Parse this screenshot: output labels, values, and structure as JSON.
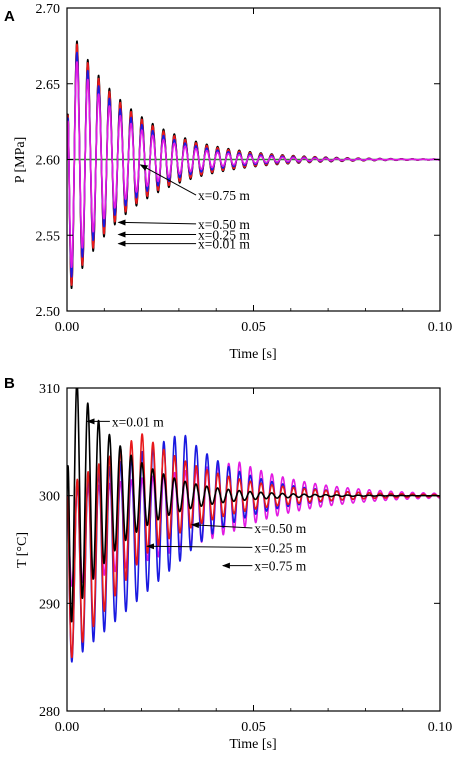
{
  "chart_data": [
    {
      "panel": "A",
      "type": "line",
      "xlabel": "Time [s]",
      "ylabel": "P [MPa]",
      "xlim": [
        0.0,
        0.1
      ],
      "ylim": [
        2.5,
        2.7
      ],
      "x_ticks": [
        "0.00",
        "0.05",
        "0.10"
      ],
      "x_tick_values": [
        0.0,
        0.05,
        0.1
      ],
      "y_ticks": [
        "2.50",
        "2.55",
        "2.60",
        "2.65",
        "2.70"
      ],
      "y_tick_values": [
        2.5,
        2.55,
        2.6,
        2.65,
        2.7
      ],
      "grid": false,
      "series": [
        {
          "name": "x=0.01 m",
          "color": "#000000",
          "equilibrium": 2.6,
          "first_peak": 2.69,
          "first_trough": 2.507,
          "period_s": 0.0029,
          "decay_time_s": 0.017
        },
        {
          "name": "x=0.25 m",
          "color": "#e8191b",
          "equilibrium": 2.6,
          "first_peak": 2.688,
          "first_trough": 2.509,
          "period_s": 0.0029,
          "decay_time_s": 0.0165
        },
        {
          "name": "x=0.50 m",
          "color": "#1a1ae0",
          "equilibrium": 2.6,
          "first_peak": 2.68,
          "first_trough": 2.512,
          "period_s": 0.0029,
          "decay_time_s": 0.0155
        },
        {
          "name": "x=0.75 m",
          "color": "#e21ae2",
          "equilibrium": 2.6,
          "first_peak": 2.67,
          "first_trough": 2.515,
          "period_s": 0.0029,
          "decay_time_s": 0.0145
        }
      ],
      "reference_line": {
        "y": 2.6,
        "color": "#2a8a2a"
      },
      "annotations": [
        {
          "text": "x=0.75 m",
          "arrow_to": [
            0.0197,
            2.5965
          ],
          "label_at": [
            0.0346,
            2.5765
          ]
        },
        {
          "text": "x=0.50 m",
          "arrow_to": [
            0.0138,
            2.5585
          ],
          "label_at": [
            0.0346,
            2.5575
          ]
        },
        {
          "text": "x=0.25 m",
          "arrow_to": [
            0.0138,
            2.5505
          ],
          "label_at": [
            0.0346,
            2.5505
          ]
        },
        {
          "text": "x=0.01 m",
          "arrow_to": [
            0.0138,
            2.5445
          ],
          "label_at": [
            0.0346,
            2.5445
          ]
        }
      ]
    },
    {
      "panel": "B",
      "type": "line",
      "xlabel": "Time [s]",
      "ylabel": "T [°C]",
      "xlim": [
        0.0,
        0.1
      ],
      "ylim": [
        280,
        310
      ],
      "x_ticks": [
        "0.00",
        "0.05",
        "0.10"
      ],
      "x_tick_values": [
        0.0,
        0.05,
        0.1
      ],
      "y_ticks": [
        "280",
        "290",
        "300",
        "310"
      ],
      "y_tick_values": [
        280,
        290,
        300,
        310
      ],
      "grid": false,
      "series": [
        {
          "name": "x=0.01 m",
          "color": "#000000",
          "equilibrium": 300,
          "first_peak": 309,
          "first_trough": 283.4,
          "period_s": 0.0029,
          "decay_time_s": 0.014,
          "delay_s": 0.0
        },
        {
          "name": "x=0.25 m",
          "color": "#e8191b",
          "equilibrium": 300,
          "first_peak": 303,
          "first_trough": 283.5,
          "period_s": 0.0029,
          "decay_time_s": 0.02,
          "delay_s": 0.02
        },
        {
          "name": "x=0.50 m",
          "color": "#1a1ae0",
          "equilibrium": 300,
          "first_peak": 300,
          "first_trough": 283.3,
          "period_s": 0.0029,
          "decay_time_s": 0.016,
          "delay_s": 0.031
        },
        {
          "name": "x=0.75 m",
          "color": "#e21ae2",
          "equilibrium": 300,
          "first_peak": 300,
          "first_trough": 291,
          "period_s": 0.0029,
          "decay_time_s": 0.02,
          "delay_s": 0.046
        }
      ],
      "annotations": [
        {
          "text": "x=0.01 m",
          "arrow_to": [
            0.0055,
            306.9
          ],
          "label_at": [
            0.0115,
            306.9
          ]
        },
        {
          "text": "x=0.50 m",
          "arrow_to": [
            0.0335,
            297.3
          ],
          "label_at": [
            0.0497,
            297.0
          ]
        },
        {
          "text": "x=0.25 m",
          "arrow_to": [
            0.0215,
            295.3
          ],
          "label_at": [
            0.0497,
            295.2
          ]
        },
        {
          "text": "x=0.75 m",
          "arrow_to": [
            0.0418,
            293.5
          ],
          "label_at": [
            0.0497,
            293.5
          ]
        }
      ]
    }
  ]
}
